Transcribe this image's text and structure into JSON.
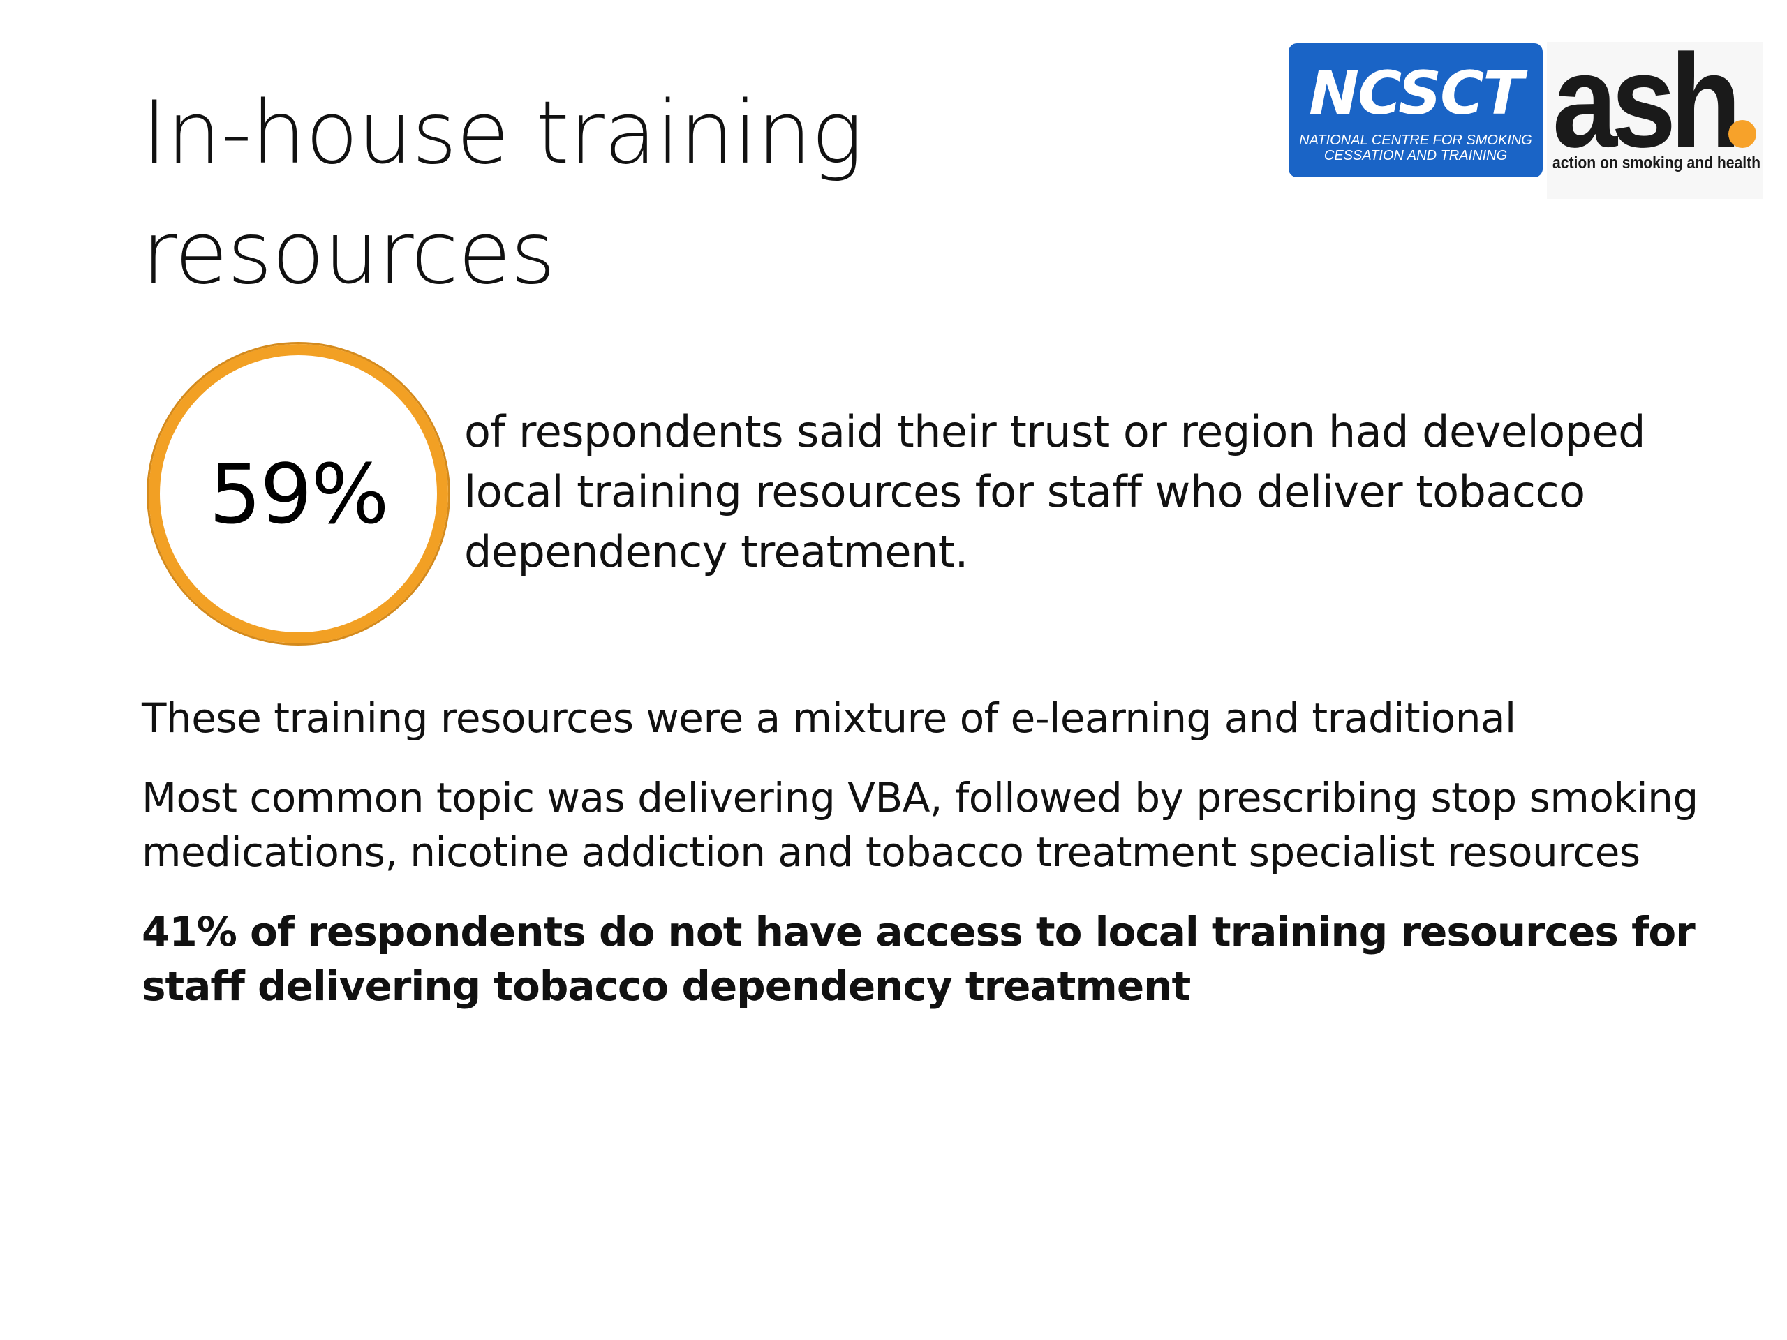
{
  "slide": {
    "title": "In-house training resources"
  },
  "logos": {
    "ncsct": {
      "word": "NCSCT",
      "subtitle": "NATIONAL CENTRE FOR SMOKING CESSATION AND TRAINING",
      "color": "#1a64c6"
    },
    "ash": {
      "word": "ash",
      "subtitle": "action on smoking and health",
      "dot_color": "#f7a22a"
    }
  },
  "stat": {
    "value": "59%",
    "ring_color": "#f2a024",
    "caption": "of respondents said their trust or region had developed local training resources for staff who deliver tobacco dependency treatment."
  },
  "paragraphs": [
    "These training resources were a mixture of e-learning and traditional",
    "Most common topic was delivering VBA, followed by prescribing stop smoking medications, nicotine addiction and tobacco treatment specialist resources",
    "41% of respondents do not have access to local training resources for staff delivering tobacco dependency treatment"
  ]
}
